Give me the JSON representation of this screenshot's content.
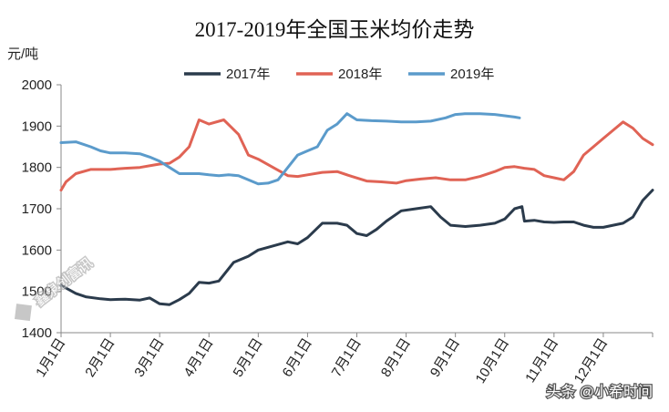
{
  "chart_data": {
    "type": "line",
    "title": "2017-2019年全国玉米均价走势",
    "ylabel": "元/吨",
    "ylim": [
      1400,
      2000
    ],
    "yticks": [
      1400,
      1500,
      1600,
      1700,
      1800,
      1900,
      2000
    ],
    "xlim": [
      0,
      12
    ],
    "categories": [
      "1月1日",
      "2月1日",
      "3月1日",
      "4月1日",
      "5月1日",
      "6月1日",
      "7月1日",
      "8月1日",
      "9月1日",
      "10月1日",
      "11月1日",
      "12月1日"
    ],
    "grid": false,
    "legend_position": "top",
    "series": [
      {
        "name": "2017年",
        "color": "#2b3b4c",
        "x": [
          0.0,
          0.1,
          0.3,
          0.5,
          0.8,
          1.0,
          1.3,
          1.6,
          1.8,
          2.0,
          2.2,
          2.4,
          2.6,
          2.8,
          3.0,
          3.2,
          3.5,
          3.8,
          4.0,
          4.3,
          4.6,
          4.8,
          5.0,
          5.3,
          5.6,
          5.8,
          6.0,
          6.2,
          6.4,
          6.6,
          6.9,
          7.2,
          7.5,
          7.7,
          7.9,
          8.2,
          8.5,
          8.8,
          9.0,
          9.2,
          9.35,
          9.4,
          9.6,
          9.8,
          10.0,
          10.2,
          10.4,
          10.6,
          10.8,
          11.0,
          11.2,
          11.4,
          11.6,
          11.8,
          12.0
        ],
        "values": [
          1515,
          1508,
          1495,
          1487,
          1482,
          1480,
          1481,
          1479,
          1484,
          1470,
          1468,
          1480,
          1495,
          1522,
          1520,
          1525,
          1570,
          1585,
          1600,
          1610,
          1620,
          1615,
          1630,
          1665,
          1665,
          1660,
          1640,
          1635,
          1650,
          1670,
          1695,
          1700,
          1705,
          1680,
          1660,
          1657,
          1660,
          1665,
          1675,
          1700,
          1705,
          1670,
          1672,
          1668,
          1667,
          1668,
          1668,
          1660,
          1655,
          1655,
          1660,
          1665,
          1680,
          1720,
          1745
        ]
      },
      {
        "name": "2018年",
        "color": "#e06355",
        "x": [
          0.0,
          0.1,
          0.3,
          0.6,
          1.0,
          1.3,
          1.6,
          1.9,
          2.0,
          2.2,
          2.4,
          2.6,
          2.8,
          3.0,
          3.3,
          3.6,
          3.8,
          4.0,
          4.3,
          4.6,
          4.8,
          5.0,
          5.3,
          5.6,
          5.9,
          6.2,
          6.5,
          6.8,
          7.0,
          7.3,
          7.6,
          7.9,
          8.2,
          8.5,
          8.8,
          9.0,
          9.2,
          9.4,
          9.6,
          9.8,
          10.0,
          10.2,
          10.4,
          10.6,
          10.8,
          11.0,
          11.2,
          11.4,
          11.6,
          11.8,
          12.0
        ],
        "values": [
          1745,
          1765,
          1785,
          1795,
          1795,
          1798,
          1800,
          1806,
          1808,
          1810,
          1825,
          1850,
          1915,
          1905,
          1915,
          1880,
          1830,
          1820,
          1800,
          1780,
          1778,
          1782,
          1788,
          1790,
          1778,
          1767,
          1765,
          1762,
          1768,
          1772,
          1775,
          1770,
          1770,
          1778,
          1790,
          1800,
          1802,
          1798,
          1795,
          1780,
          1775,
          1770,
          1790,
          1830,
          1850,
          1870,
          1890,
          1910,
          1895,
          1870,
          1855
        ]
      },
      {
        "name": "2019年",
        "color": "#5b9bcb",
        "x": [
          0.0,
          0.3,
          0.6,
          0.8,
          1.0,
          1.3,
          1.6,
          1.8,
          2.0,
          2.2,
          2.4,
          2.6,
          2.8,
          3.0,
          3.2,
          3.4,
          3.6,
          3.8,
          4.0,
          4.2,
          4.4,
          4.6,
          4.8,
          5.0,
          5.2,
          5.4,
          5.6,
          5.8,
          6.0,
          6.3,
          6.6,
          6.9,
          7.2,
          7.5,
          7.8,
          8.0,
          8.2,
          8.5,
          8.8,
          9.0,
          9.2,
          9.3
        ],
        "values": [
          1860,
          1862,
          1850,
          1840,
          1835,
          1835,
          1833,
          1825,
          1815,
          1800,
          1785,
          1785,
          1785,
          1782,
          1780,
          1782,
          1780,
          1770,
          1760,
          1762,
          1770,
          1800,
          1830,
          1840,
          1850,
          1890,
          1905,
          1930,
          1915,
          1913,
          1912,
          1910,
          1910,
          1912,
          1920,
          1928,
          1930,
          1930,
          1928,
          1925,
          1922,
          1920
        ]
      }
    ]
  },
  "watermarks": {
    "left": "鑫泉创富讯",
    "bottom_right": "头条 @小希时间"
  }
}
